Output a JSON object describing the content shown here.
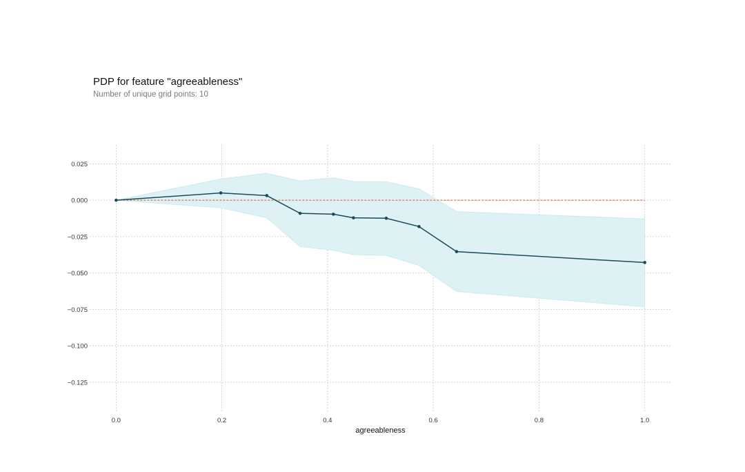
{
  "chart_data": {
    "type": "line",
    "title": "PDP for feature \"agreeableness\"",
    "subtitle": "Number of unique grid points: 10",
    "xlabel": "agreeableness",
    "ylabel": "",
    "xlim": [
      -0.05,
      1.05
    ],
    "ylim": [
      -0.145,
      0.038
    ],
    "x_ticks": [
      0.0,
      0.2,
      0.4,
      0.6,
      0.8,
      1.0
    ],
    "x_tick_labels": [
      "0.0",
      "0.2",
      "0.4",
      "0.6",
      "0.8",
      "1.0"
    ],
    "y_ticks": [
      0.025,
      0.0,
      -0.025,
      -0.05,
      -0.075,
      -0.1,
      -0.125
    ],
    "y_tick_labels": [
      "0.025",
      "0.000",
      "−0.025",
      "−0.050",
      "−0.075",
      "−0.100",
      "−0.125"
    ],
    "grid": true,
    "x": [
      0.0,
      0.198,
      0.285,
      0.348,
      0.411,
      0.449,
      0.511,
      0.573,
      0.644,
      1.0
    ],
    "series": [
      {
        "values": [
          0.0,
          0.005,
          0.0032,
          -0.009,
          -0.0096,
          -0.0121,
          -0.0124,
          -0.0181,
          -0.0353,
          -0.0428
        ],
        "upper": [
          0.0,
          0.0146,
          0.0185,
          0.0133,
          0.0154,
          0.0128,
          0.0127,
          0.0078,
          -0.0078,
          -0.0128
        ],
        "lower": [
          0.0,
          -0.0052,
          -0.0121,
          -0.0318,
          -0.0344,
          -0.0374,
          -0.0379,
          -0.0448,
          -0.0627,
          -0.0732
        ],
        "color": "#1a4a5a"
      }
    ],
    "reference_line": {
      "y": 0.0,
      "color": "#d9532c",
      "style": "dashed"
    },
    "band_color": "#66c2d7",
    "colors": {
      "grid": "#c8c8c8",
      "line": "#1a4a5a",
      "band": "#def2f6",
      "reference": "#d9532c"
    }
  }
}
